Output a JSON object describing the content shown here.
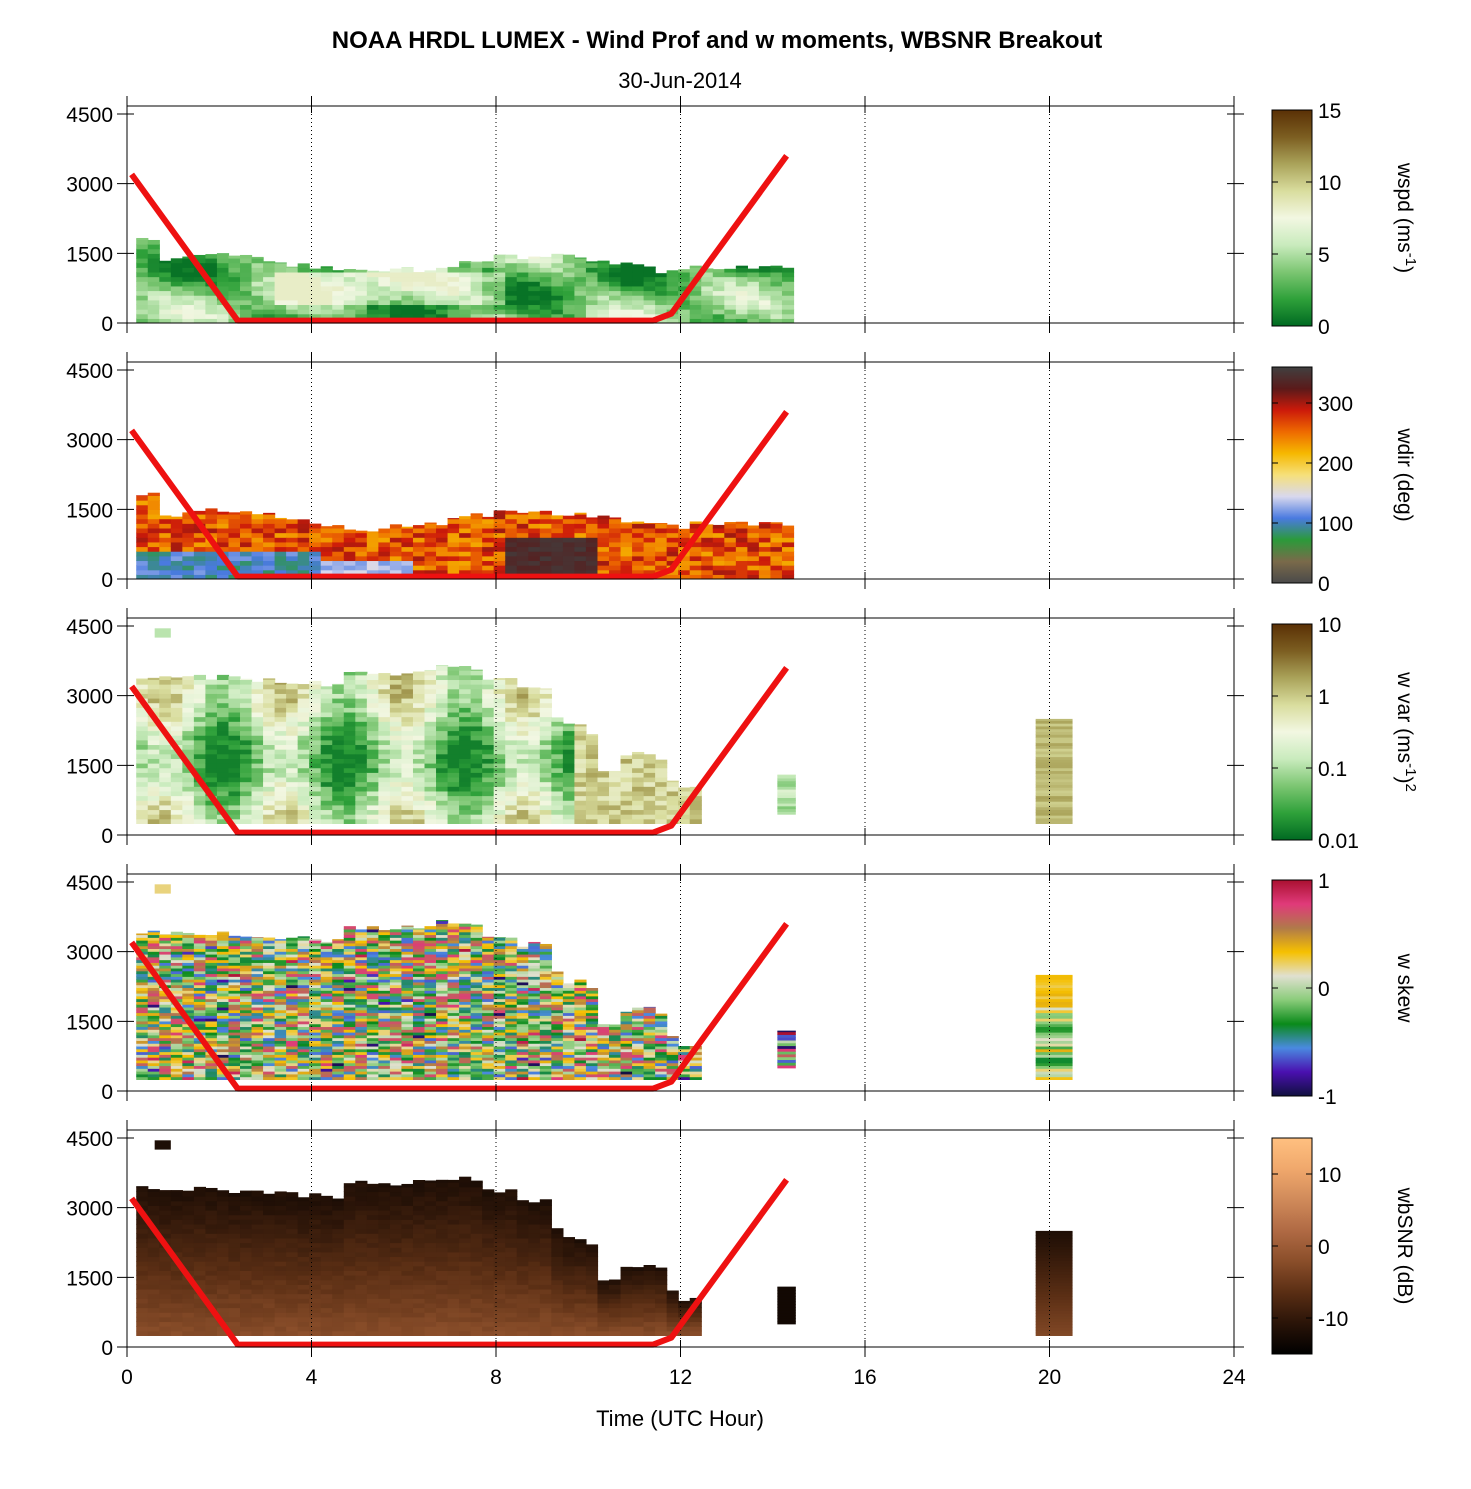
{
  "chart_data": {
    "type": "heatmap",
    "title": "NOAA HRDL LUMEX - Wind Prof and w moments, WBSNR Breakout",
    "subtitle": "30-Jun-2014",
    "xlabel": "Time (UTC Hour)",
    "xlim": [
      0,
      24
    ],
    "xticks": [
      "0",
      "4",
      "8",
      "12",
      "16",
      "20",
      "24"
    ],
    "ylim": [
      0,
      4500
    ],
    "yticks": [
      "0",
      "1500",
      "3000",
      "4500"
    ],
    "grid": "vertical dotted at x ticks",
    "boundary_line": {
      "name": "",
      "color": "#ee1111",
      "x": [
        0.1,
        2.4,
        11.4,
        11.8,
        14.3
      ],
      "y": [
        3200,
        50,
        50,
        200,
        3600
      ]
    },
    "panels": [
      {
        "name": "wspd",
        "colorbar": {
          "label_parts": [
            "wspd (ms",
            "-1",
            ")"
          ],
          "scale": "linear",
          "range": [
            0,
            15
          ],
          "tick_values": [
            0,
            5,
            10,
            15
          ],
          "tick_labels": [
            "0",
            "5",
            "10",
            "15"
          ],
          "colors": [
            "#006a22",
            "#2fa13a",
            "#7cc672",
            "#c9ebbd",
            "#f2f7e2",
            "#d9dd9e",
            "#aaa35a",
            "#7c5e21",
            "#5a3005"
          ]
        },
        "data_extent": {
          "x": [
            0.2,
            14.4
          ],
          "y": [
            0,
            1800
          ]
        },
        "description": "wind speed roughly 0–8 m/s, lighter values 200–1200 m around 4–8 UTC"
      },
      {
        "name": "wdir",
        "colorbar": {
          "label_parts": [
            "wdir (deg)"
          ],
          "scale": "linear",
          "range": [
            0,
            360
          ],
          "tick_values": [
            0,
            100,
            200,
            300
          ],
          "tick_labels": [
            "0",
            "100",
            "200",
            "300"
          ],
          "colors": [
            "#4a4a4a",
            "#7a6a4a",
            "#2b9a3a",
            "#4a7ae0",
            "#d8d8ee",
            "#f6e07a",
            "#f6b800",
            "#ee6a00",
            "#cc1a0a",
            "#5a1a1a",
            "#404040"
          ]
        },
        "data_extent": {
          "x": [
            0.2,
            14.4
          ],
          "y": [
            0,
            1800
          ]
        },
        "description": "mostly 200–320 deg aloft, 80–150 deg near surface early, dark 340–360 deg 8–10 UTC"
      },
      {
        "name": "w var",
        "colorbar": {
          "label_parts": [
            "w var (ms",
            "-1",
            ")",
            "2"
          ],
          "scale": "log",
          "range": [
            0.01,
            10
          ],
          "tick_values": [
            0.01,
            0.1,
            1,
            10
          ],
          "tick_labels": [
            "0.01",
            "0.1",
            "1",
            "10"
          ],
          "colors": [
            "#006a22",
            "#2fa13a",
            "#7cc672",
            "#c9ebbd",
            "#f2f7e2",
            "#d9dd9e",
            "#aaa35a",
            "#7c5e21",
            "#5a3005"
          ]
        },
        "data_extent": {
          "x": [
            0.2,
            12.3
          ],
          "y": [
            250,
            3600
          ]
        },
        "extra_blocks": [
          {
            "x": [
              14.1,
              14.5
            ],
            "y": [
              450,
              1300
            ]
          },
          {
            "x": [
              19.7,
              20.5
            ],
            "y": [
              250,
              2500
            ]
          }
        ]
      },
      {
        "name": "w skew",
        "colorbar": {
          "label_parts": [
            "w skew"
          ],
          "scale": "linear",
          "range": [
            -1,
            1
          ],
          "tick_values": [
            -1,
            0,
            1
          ],
          "tick_labels": [
            "-1",
            "0",
            "1"
          ],
          "colors": [
            "#101040",
            "#4a10b0",
            "#4a8ae0",
            "#0a8a1a",
            "#8acc7a",
            "#e0e0d0",
            "#f6c000",
            "#b07a4a",
            "#e03a7a",
            "#aa1030"
          ]
        },
        "data_extent": {
          "x": [
            0.2,
            12.3
          ],
          "y": [
            250,
            3600
          ]
        },
        "extra_blocks": [
          {
            "x": [
              14.1,
              14.5
            ],
            "y": [
              500,
              1300
            ]
          },
          {
            "x": [
              19.7,
              20.5
            ],
            "y": [
              250,
              2500
            ]
          }
        ]
      },
      {
        "name": "wbSNR",
        "colorbar": {
          "label_parts": [
            "wbSNR (dB)"
          ],
          "scale": "linear",
          "range": [
            -15,
            15
          ],
          "tick_values": [
            -10,
            0,
            10
          ],
          "tick_labels": [
            "-10",
            "0",
            "10"
          ],
          "colors": [
            "#000000",
            "#2a1408",
            "#5a2e14",
            "#8a4e2a",
            "#b06a44",
            "#d08a5a",
            "#f0a86c",
            "#ffc080"
          ]
        },
        "data_extent": {
          "x": [
            0.2,
            12.3
          ],
          "y": [
            250,
            3600
          ]
        },
        "extra_blocks": [
          {
            "x": [
              14.1,
              14.5
            ],
            "y": [
              500,
              1300
            ]
          },
          {
            "x": [
              19.7,
              20.5
            ],
            "y": [
              250,
              2500
            ]
          }
        ]
      }
    ]
  }
}
